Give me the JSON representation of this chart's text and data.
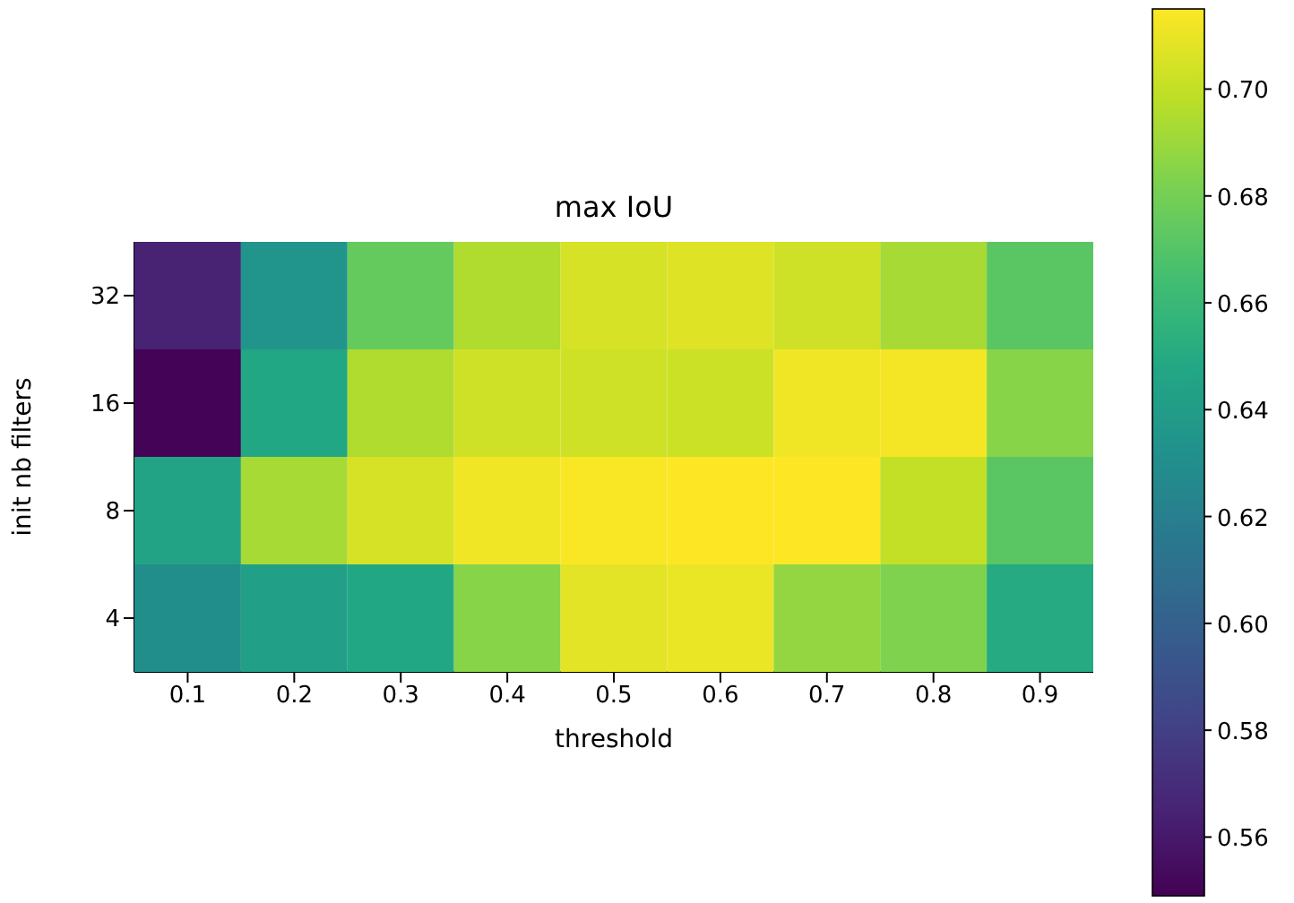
{
  "chart_data": {
    "type": "heatmap",
    "title": "max IoU",
    "xlabel": "threshold",
    "ylabel": "init nb filters",
    "categories": [
      "0.1",
      "0.2",
      "0.3",
      "0.4",
      "0.5",
      "0.6",
      "0.7",
      "0.8",
      "0.9"
    ],
    "y_categories": [
      "32",
      "16",
      "8",
      "4"
    ],
    "cells": [
      [
        0.565,
        0.635,
        0.675,
        0.695,
        0.705,
        0.707,
        0.703,
        0.693,
        0.672
      ],
      [
        0.55,
        0.648,
        0.695,
        0.703,
        0.703,
        0.702,
        0.712,
        0.713,
        0.685
      ],
      [
        0.645,
        0.693,
        0.705,
        0.712,
        0.714,
        0.715,
        0.715,
        0.7,
        0.672
      ],
      [
        0.63,
        0.643,
        0.648,
        0.685,
        0.708,
        0.71,
        0.688,
        0.683,
        0.65
      ]
    ],
    "clim": [
      0.549,
      0.715
    ],
    "cticks": [
      0.56,
      0.58,
      {
        "value": 0.6,
        "label": "0.60"
      },
      0.62,
      0.64,
      0.66,
      0.68,
      {
        "value": 0.7,
        "label": "0.70"
      }
    ]
  }
}
